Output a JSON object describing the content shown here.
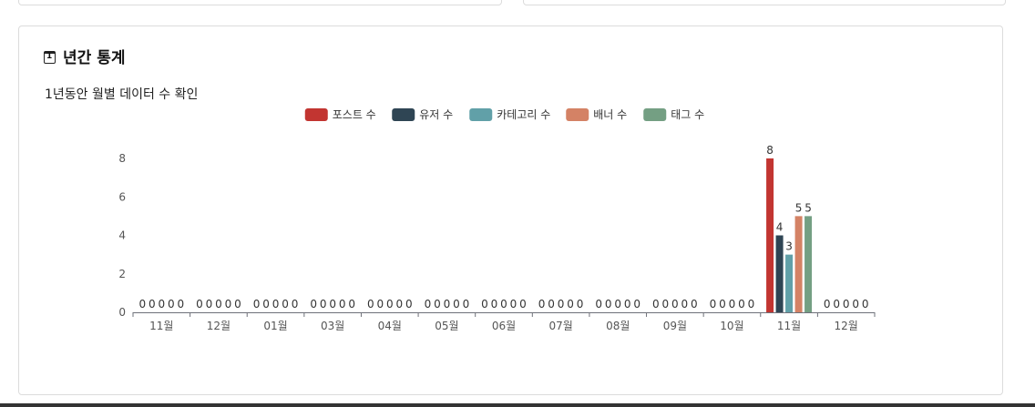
{
  "card": {
    "title": "년간 통계",
    "subtitle": "1년동안 월별 데이터 수 확인"
  },
  "chart_data": {
    "type": "bar",
    "categories": [
      "11월",
      "12월",
      "01월",
      "03월",
      "04월",
      "05월",
      "06월",
      "07월",
      "08월",
      "09월",
      "10월",
      "11월",
      "12월"
    ],
    "series": [
      {
        "name": "포스트 수",
        "color": "#c23531",
        "values": [
          0,
          0,
          0,
          0,
          0,
          0,
          0,
          0,
          0,
          0,
          0,
          8,
          0
        ]
      },
      {
        "name": "유저 수",
        "color": "#2f4554",
        "values": [
          0,
          0,
          0,
          0,
          0,
          0,
          0,
          0,
          0,
          0,
          0,
          4,
          0
        ]
      },
      {
        "name": "카테고리 수",
        "color": "#61a0a8",
        "values": [
          0,
          0,
          0,
          0,
          0,
          0,
          0,
          0,
          0,
          0,
          0,
          3,
          0
        ]
      },
      {
        "name": "배너 수",
        "color": "#d48265",
        "values": [
          0,
          0,
          0,
          0,
          0,
          0,
          0,
          0,
          0,
          0,
          0,
          5,
          0
        ]
      },
      {
        "name": "태그 수",
        "color": "#749f83",
        "values": [
          0,
          0,
          0,
          0,
          0,
          0,
          0,
          0,
          0,
          0,
          0,
          5,
          0
        ]
      }
    ],
    "ylim": [
      0,
      8
    ],
    "yticks": [
      0,
      2,
      4,
      6,
      8
    ],
    "legend_position": "top-center",
    "grid": false,
    "data_labels": true
  }
}
